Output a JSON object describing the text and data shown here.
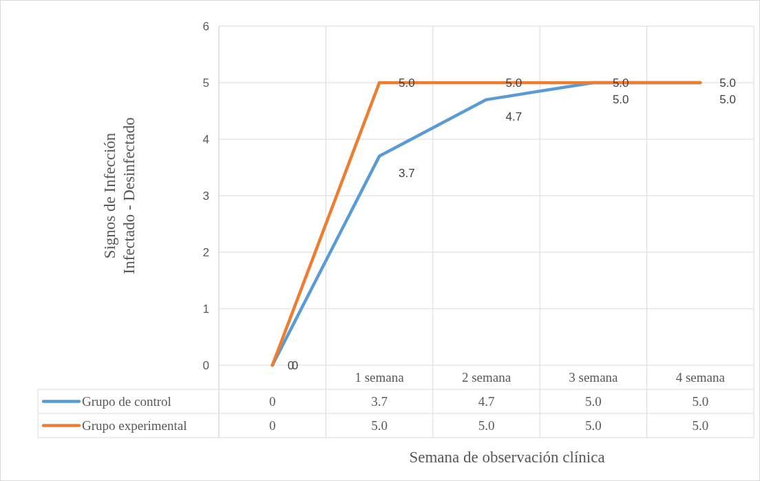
{
  "chart_data": {
    "type": "line",
    "xlabel": "Semana de observación clínica",
    "ylabel": "Signos de Infección\nInfectado - Desinfectado",
    "categories": [
      null,
      "1 semana",
      "2 semana",
      "3 semana",
      "4 semana"
    ],
    "series": [
      {
        "name": "Grupo de control",
        "color": "#5b9bd5",
        "values": [
          0,
          3.7,
          4.7,
          5,
          5
        ],
        "value_labels": [
          "0",
          "3.7",
          "4.7",
          "5.0",
          "5.0"
        ]
      },
      {
        "name": "Grupo experimental",
        "color": "#ed7d31",
        "values": [
          0,
          5,
          5,
          5,
          5
        ],
        "value_labels": [
          "0",
          "5.0",
          "5.0",
          "5.0",
          "5.0"
        ]
      }
    ],
    "ylim": [
      0,
      6
    ],
    "yticks": [
      0,
      1,
      2,
      3,
      4,
      5,
      6
    ],
    "grid": true,
    "legend": "bottom",
    "marker": "none",
    "line_style": "solid"
  }
}
